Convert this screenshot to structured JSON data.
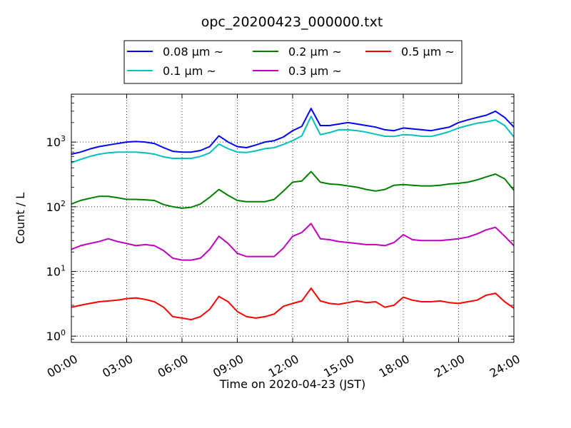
{
  "chart_data": {
    "type": "line",
    "title": "opc_20200423_000000.txt",
    "xlabel": "Time on 2020-04-23 (JST)",
    "ylabel": "Count / L",
    "x_ticks": [
      "00:00",
      "03:00",
      "06:00",
      "09:00",
      "12:00",
      "15:00",
      "18:00",
      "21:00",
      "24:00"
    ],
    "xlim_hours": [
      0,
      24
    ],
    "y_scale": "log",
    "ylim": [
      0.8,
      5500
    ],
    "y_ticks": [
      {
        "value": 1,
        "base": "10",
        "exp": "0"
      },
      {
        "value": 10,
        "base": "10",
        "exp": "1"
      },
      {
        "value": 100,
        "base": "10",
        "exp": "2"
      },
      {
        "value": 1000,
        "base": "10",
        "exp": "3"
      }
    ],
    "grid": true,
    "legend_position": "top-center",
    "x": [
      0,
      0.5,
      1,
      1.5,
      2,
      2.5,
      3,
      3.5,
      4,
      4.5,
      5,
      5.5,
      6,
      6.5,
      7,
      7.5,
      8,
      8.5,
      9,
      9.5,
      10,
      10.5,
      11,
      11.5,
      12,
      12.5,
      13,
      13.5,
      14,
      14.5,
      15,
      15.5,
      16,
      16.5,
      17,
      17.5,
      18,
      18.5,
      19,
      19.5,
      20,
      20.5,
      21,
      21.5,
      22,
      22.5,
      23,
      23.5,
      24
    ],
    "series": [
      {
        "name": "0.08 μm ~",
        "color": "#0000ff",
        "values": [
          650,
          700,
          780,
          850,
          900,
          950,
          1000,
          1020,
          1000,
          950,
          820,
          720,
          700,
          700,
          740,
          850,
          1250,
          1000,
          850,
          820,
          900,
          1000,
          1050,
          1200,
          1500,
          1750,
          3300,
          1800,
          1800,
          1900,
          2000,
          1900,
          1800,
          1700,
          1550,
          1500,
          1650,
          1600,
          1550,
          1500,
          1600,
          1700,
          2000,
          2200,
          2400,
          2600,
          3000,
          2400,
          1700
        ]
      },
      {
        "name": "0.1 μm ~",
        "color": "#00bfbf",
        "values": [
          480,
          540,
          600,
          650,
          680,
          700,
          700,
          700,
          680,
          650,
          590,
          560,
          560,
          560,
          600,
          680,
          930,
          790,
          700,
          690,
          730,
          790,
          820,
          920,
          1050,
          1250,
          2500,
          1300,
          1400,
          1550,
          1550,
          1500,
          1420,
          1320,
          1230,
          1220,
          1300,
          1280,
          1230,
          1220,
          1320,
          1450,
          1650,
          1800,
          1950,
          2050,
          2200,
          1800,
          1200
        ]
      },
      {
        "name": "0.2 μm ~",
        "color": "#008000",
        "values": [
          110,
          125,
          135,
          145,
          145,
          138,
          130,
          130,
          128,
          125,
          108,
          100,
          95,
          98,
          110,
          140,
          185,
          150,
          125,
          120,
          120,
          120,
          130,
          175,
          240,
          250,
          350,
          240,
          225,
          220,
          210,
          200,
          185,
          175,
          185,
          215,
          220,
          215,
          210,
          210,
          215,
          225,
          230,
          240,
          260,
          290,
          320,
          270,
          180
        ]
      },
      {
        "name": "0.3 μm ~",
        "color": "#bf00bf",
        "values": [
          22,
          25,
          27,
          29,
          32,
          29,
          27,
          25,
          26,
          25,
          21,
          16,
          15,
          15,
          16,
          22,
          35,
          27,
          19,
          17,
          17,
          17,
          17,
          23,
          35,
          40,
          55,
          32,
          31,
          29,
          28,
          27,
          26,
          26,
          25,
          28,
          37,
          31,
          30,
          30,
          30,
          31,
          32,
          34,
          38,
          44,
          48,
          35,
          25
        ]
      },
      {
        "name": "0.5 μm ~",
        "color": "#ff0000",
        "values": [
          2.8,
          3,
          3.2,
          3.4,
          3.5,
          3.6,
          3.8,
          3.9,
          3.7,
          3.4,
          2.8,
          2.0,
          1.9,
          1.8,
          2.0,
          2.6,
          4.1,
          3.4,
          2.4,
          2.0,
          1.9,
          2.0,
          2.2,
          2.9,
          3.2,
          3.5,
          5.5,
          3.5,
          3.2,
          3.1,
          3.3,
          3.5,
          3.3,
          3.4,
          2.8,
          3.0,
          4.0,
          3.6,
          3.4,
          3.4,
          3.5,
          3.3,
          3.2,
          3.4,
          3.6,
          4.3,
          4.6,
          3.4,
          2.7
        ]
      }
    ]
  }
}
